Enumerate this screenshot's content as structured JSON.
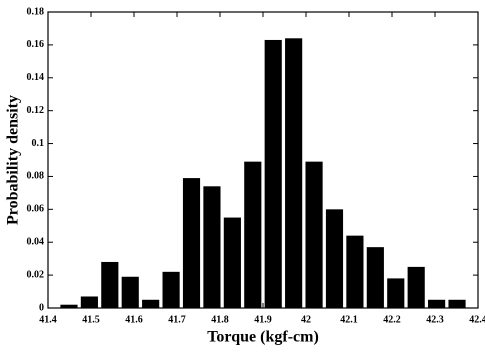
{
  "chart_data": {
    "type": "histogram",
    "xlabel": "Torque  (kgf-cm)",
    "ylabel": "Probability density",
    "bins": [
      41.425,
      41.4725,
      41.52,
      41.5675,
      41.615,
      41.6625,
      41.71,
      41.7575,
      41.805,
      41.8525,
      41.9,
      41.9475,
      41.995,
      42.0425,
      42.09,
      42.1375,
      42.185,
      42.2325,
      42.28,
      42.3275,
      42.375
    ],
    "values": [
      0.002,
      0.007,
      0.028,
      0.019,
      0.005,
      0.022,
      0.079,
      0.074,
      0.055,
      0.089,
      0.163,
      0.164,
      0.089,
      0.06,
      0.044,
      0.037,
      0.018,
      0.025,
      0.005,
      0.005
    ],
    "color": "#000000",
    "xlim": [
      41.4,
      42.4
    ],
    "xticks": [
      41.4,
      41.5,
      41.6,
      41.7,
      41.8,
      41.9,
      42,
      42.1,
      42.2,
      42.3,
      42.4
    ],
    "ylim": [
      0,
      0.18
    ],
    "yticks": [
      0,
      0.02,
      0.04,
      0.06,
      0.08,
      0.1,
      0.12,
      0.14,
      0.16,
      0.18
    ]
  }
}
